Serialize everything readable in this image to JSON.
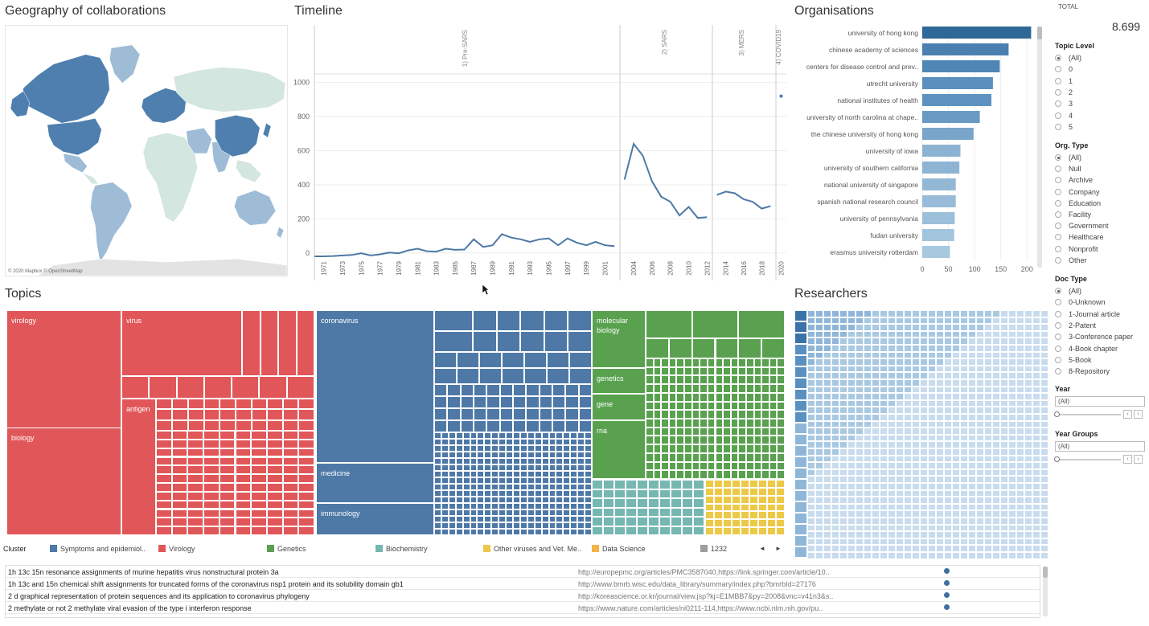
{
  "panels": {
    "geo": "Geography of collaborations",
    "timeline": "Timeline",
    "organisations": "Organisations",
    "topics": "Topics",
    "researchers": "Researchers"
  },
  "map": {
    "attribution": "© 2020 Mapbox © OpenStreetMap",
    "colors": {
      "ocean": "#ffffff",
      "dark": "#4e7fae",
      "mid": "#9ebcd6",
      "light": "#d3e6e0",
      "none": "#e3e3e3"
    }
  },
  "total": {
    "label": "TOTAL",
    "value": "8.699"
  },
  "chart_data": [
    {
      "type": "line",
      "title": "Timeline",
      "panels": [
        "1) Pre-SARS",
        "2) SARS",
        "3) MERS",
        "4) COVID19"
      ],
      "yticks": [
        0,
        200,
        400,
        600,
        800,
        1000
      ],
      "ylim": [
        -20,
        1050
      ],
      "xticks": [
        "1971",
        "1973",
        "1975",
        "1977",
        "1979",
        "1981",
        "1983",
        "1985",
        "1987",
        "1989",
        "1991",
        "1993",
        "1995",
        "1997",
        "1999",
        "2001",
        "2004",
        "2006",
        "2008",
        "2010",
        "2012",
        "2014",
        "2016",
        "2018",
        "2020"
      ],
      "series": [
        {
          "panel": "1) Pre-SARS",
          "x": [
            1970,
            1971,
            1972,
            1973,
            1974,
            1975,
            1976,
            1977,
            1978,
            1979,
            1980,
            1981,
            1982,
            1983,
            1984,
            1985,
            1986,
            1987,
            1988,
            1989,
            1990,
            1991,
            1992,
            1993,
            1994,
            1995,
            1996,
            1997,
            1998,
            1999,
            2000,
            2001,
            2002
          ],
          "y": [
            -20,
            -20,
            -18,
            -15,
            -12,
            -2,
            -15,
            -8,
            2,
            -2,
            15,
            25,
            10,
            8,
            25,
            18,
            20,
            80,
            35,
            45,
            110,
            90,
            80,
            65,
            80,
            85,
            45,
            85,
            60,
            45,
            65,
            45,
            40
          ]
        },
        {
          "panel": "2) SARS",
          "x": [
            2003,
            2004,
            2005,
            2006,
            2007,
            2008,
            2009,
            2010,
            2011,
            2012
          ],
          "y": [
            430,
            640,
            570,
            420,
            330,
            300,
            220,
            270,
            205,
            210
          ]
        },
        {
          "panel": "3) MERS",
          "x": [
            2013,
            2014,
            2015,
            2016,
            2017,
            2018,
            2019
          ],
          "y": [
            340,
            360,
            350,
            315,
            300,
            260,
            275
          ]
        },
        {
          "panel": "4) COVID19",
          "x": [
            2020
          ],
          "y": [
            920
          ]
        }
      ],
      "color": "#4e79a7"
    },
    {
      "type": "bar",
      "title": "Organisations",
      "categories": [
        "university of hong kong",
        "chinese academy of sciences",
        "centers for disease control and prev..",
        "utrecht university",
        "national institutes of health",
        "university of north carolina at chape..",
        "the chinese university of hong kong",
        "university of iowa",
        "university of southern california",
        "national university of singapore",
        "spanish national research council",
        "university of pennsylvania",
        "fudan university",
        "erasmus university rotterdam"
      ],
      "values": [
        208,
        165,
        148,
        135,
        132,
        110,
        98,
        73,
        71,
        64,
        64,
        62,
        61,
        53
      ],
      "xticks": [
        0,
        50,
        100,
        150,
        200
      ],
      "xlim": [
        0,
        215
      ]
    }
  ],
  "topics": {
    "clusters": [
      {
        "name": "virology",
        "label": "virology",
        "color": "#e15759"
      },
      {
        "name": "virus",
        "label": "virus",
        "color": "#e15759"
      },
      {
        "name": "antigen",
        "label": "antigen",
        "color": "#e15759"
      },
      {
        "name": "biology",
        "label": "biology",
        "color": "#e15759"
      },
      {
        "name": "coronavirus",
        "label": "coronavirus",
        "color": "#4e79a7"
      },
      {
        "name": "medicine",
        "label": "medicine",
        "color": "#4e79a7"
      },
      {
        "name": "immunology",
        "label": "immunology",
        "color": "#4e79a7"
      },
      {
        "name": "molecular-biology",
        "label": "molecular\nbiology",
        "color": "#59a14f"
      },
      {
        "name": "genetics",
        "label": "genetics",
        "color": "#59a14f"
      },
      {
        "name": "gene",
        "label": "gene",
        "color": "#59a14f"
      },
      {
        "name": "rna",
        "label": "rna",
        "color": "#59a14f"
      }
    ],
    "colors": {
      "red": "#e15759",
      "blue": "#4e79a7",
      "green": "#59a14f",
      "teal": "#76b7b2",
      "yellow": "#edc948"
    }
  },
  "legend": {
    "title": "Cluster",
    "items": [
      {
        "label": "Symptoms and epidemiol..",
        "color": "#4e79a7"
      },
      {
        "label": "Virology",
        "color": "#e15759"
      },
      {
        "label": "Genetics",
        "color": "#59a14f"
      },
      {
        "label": "Biochemistry",
        "color": "#76b7b2"
      },
      {
        "label": "Other viruses and Vet. Me..",
        "color": "#edc948"
      },
      {
        "label": "Data Science",
        "color": "#f2b447"
      },
      {
        "label": "1232",
        "color": "#9d9d9d"
      }
    ],
    "prev": "◄",
    "next": "►"
  },
  "documents": [
    {
      "title": "1h 13c 15n resonance assignments of murine hepatitis virus nonstructural protein 3a",
      "url": "http://europepmc.org/articles/PMC3587040,https://link.springer.com/article/10.."
    },
    {
      "title": "1h 13c and 15n chemical shift assignments for truncated forms of the coronavirus nsp1 protein and its solubility domain gb1",
      "url": "http://www.bmrb.wisc.edu/data_library/summary/index.php?bmrbId=27176"
    },
    {
      "title": "2 d graphical representation of protein sequences and its application to coronavirus phylogeny",
      "url": "http://koreascience.or.kr/journal/view.jsp?kj=E1MBB7&py=2008&vnc=v41n3&s.."
    },
    {
      "title": "2 methylate or not 2 methylate viral evasion of the type i interferon response",
      "url": "https://www.nature.com/articles/ni0211-114,https://www.ncbi.nlm.nih.gov/pu.."
    },
    {
      "title": "",
      "url": ""
    }
  ],
  "filters": {
    "topic_level": {
      "title": "Topic Level",
      "options": [
        "(All)",
        "0",
        "1",
        "2",
        "3",
        "4",
        "5"
      ],
      "selected": "(All)"
    },
    "org_type": {
      "title": "Org. Type",
      "options": [
        "(All)",
        "Null",
        "Archive",
        "Company",
        "Education",
        "Facility",
        "Government",
        "Healthcare",
        "Nonprofit",
        "Other"
      ],
      "selected": "(All)"
    },
    "doc_type": {
      "title": "Doc Type",
      "options": [
        "(All)",
        "0-Unknown",
        "1-Journal article",
        "2-Patent",
        "3-Conference paper",
        "4-Book chapter",
        "5-Book",
        "8-Repository"
      ],
      "selected": "(All)"
    },
    "year": {
      "title": "Year",
      "value": "(All)"
    },
    "year_groups": {
      "title": "Year Groups",
      "value": "(All)"
    }
  }
}
